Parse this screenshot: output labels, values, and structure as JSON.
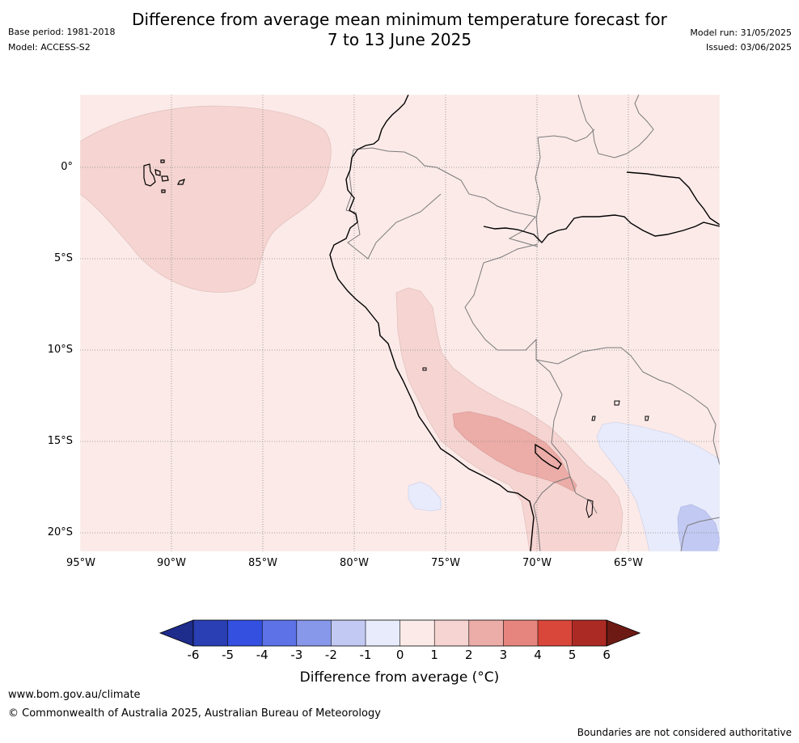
{
  "header": {
    "title_line1": "Difference from average mean minimum temperature forecast for",
    "title_line2": "7 to 13 June 2025",
    "base_period": "Base period: 1981-2018",
    "model": "Model: ACCESS-S2",
    "model_run": "Model run: 31/05/2025",
    "issued": "Issued: 03/06/2025"
  },
  "map": {
    "lat_labels": [
      "0°",
      "5°S",
      "10°S",
      "15°S",
      "20°S"
    ],
    "lon_labels": [
      "95°W",
      "90°W",
      "85°W",
      "80°W",
      "75°W",
      "70°W",
      "65°W"
    ],
    "background_category": "0 to 1",
    "gridlines": true
  },
  "colorbar": {
    "ticks": [
      "-6",
      "-5",
      "-4",
      "-3",
      "-2",
      "-1",
      "0",
      "1",
      "2",
      "3",
      "4",
      "5",
      "6"
    ],
    "colors": [
      "#1e2c8c",
      "#2a3fb3",
      "#3450e0",
      "#5c72e6",
      "#8797ea",
      "#c2c9f2",
      "#e8ebfb",
      "#fbeae8",
      "#f5d4d1",
      "#ecaca7",
      "#e6857d",
      "#d9463a",
      "#ac2a24",
      "#6e1a14"
    ],
    "label": "Difference from average (°C)"
  },
  "footer": {
    "website": "www.bom.gov.au/climate",
    "copyright": "© Commonwealth of Australia 2025, Australian Bureau of Meteorology",
    "disclaimer": "Boundaries are not considered authoritative"
  }
}
